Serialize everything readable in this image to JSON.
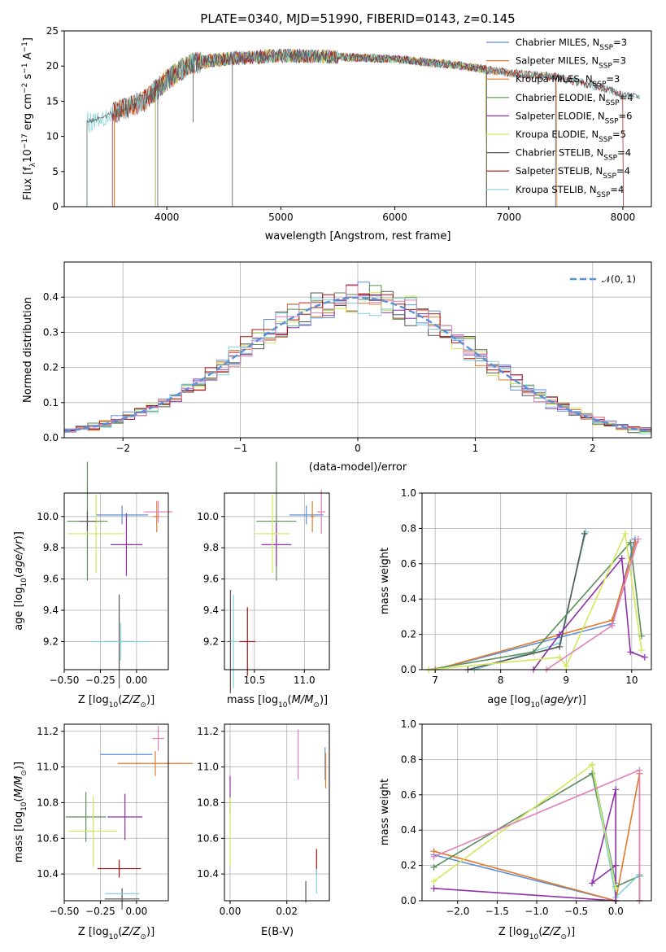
{
  "colors": {
    "Chabrier MILES": "#5b8fd8",
    "Salpeter MILES": "#e07a2a",
    "Kroupa MILES": "#e07a2a",
    "Chabrier ELODIE": "#5a8f5a",
    "Salpeter ELODIE": "#8e30a8",
    "Kroupa ELODIE": "#d4e85a",
    "Chabrier STELIB": "#555555",
    "Salpeter STELIB": "#aa1111",
    "Kroupa STELIB": "#7fd3d8",
    "pink": "#e07fb8",
    "normal": "#5b8fd8"
  },
  "chart_data": [
    {
      "id": "spectrum",
      "type": "line",
      "title": "PLATE=0340, MJD=51990, FIBERID=0143, z=0.145",
      "xlabel": "wavelength [Angstrom, rest frame]",
      "ylabel": "Flux [f",
      "ylabel_full": "Flux [fλ10⁻¹⁷ erg cm⁻² s⁻¹ A⁻¹]",
      "xlim": [
        3100,
        8250
      ],
      "ylim": [
        0,
        25
      ],
      "xticks": [
        "4000",
        "5000",
        "6000",
        "7000",
        "8000"
      ],
      "yticks": [
        "0",
        "5",
        "10",
        "15",
        "20",
        "25"
      ],
      "grid": false,
      "legend_position": "top-right",
      "continuum": [
        [
          3300,
          12
        ],
        [
          3550,
          13.5
        ],
        [
          3800,
          15
        ],
        [
          4000,
          18
        ],
        [
          4200,
          20.3
        ],
        [
          4500,
          21
        ],
        [
          5000,
          21.5
        ],
        [
          5500,
          21.3
        ],
        [
          6000,
          21
        ],
        [
          6300,
          20.5
        ],
        [
          6600,
          20
        ],
        [
          7000,
          19
        ],
        [
          7400,
          18.5
        ],
        [
          7800,
          17
        ],
        [
          8000,
          16
        ],
        [
          8200,
          15.5
        ]
      ],
      "series": [
        {
          "name": "Chabrier MILES, N",
          "sub": "SSP",
          "tail": "=3",
          "color_key": "Chabrier MILES",
          "x_min": 3540,
          "x_max": 6800
        },
        {
          "name": "Salpeter MILES, N",
          "sub": "SSP",
          "tail": "=3",
          "color_key": "Salpeter MILES",
          "x_min": 3540,
          "x_max": 7420
        },
        {
          "name": "Kroupa MILES, N",
          "sub": "SSP",
          "tail": "=3",
          "color_key": "Kroupa MILES",
          "x_min": 3540,
          "x_max": 6800
        },
        {
          "name": "Chabrier ELODIE, N",
          "sub": "SSP",
          "tail": "=4",
          "color_key": "Chabrier ELODIE",
          "x_min": 3900,
          "x_max": 6800
        },
        {
          "name": "Salpeter ELODIE, N",
          "sub": "SSP",
          "tail": "=6",
          "color_key": "Salpeter ELODIE",
          "x_min": 3900,
          "x_max": 6800
        },
        {
          "name": "Kroupa ELODIE, N",
          "sub": "SSP",
          "tail": "=5",
          "color_key": "Kroupa ELODIE",
          "x_min": 3900,
          "x_max": 6800
        },
        {
          "name": "Chabrier STELIB, N",
          "sub": "SSP",
          "tail": "=4",
          "color_key": "Chabrier STELIB",
          "x_min": 3520,
          "x_max": 8000
        },
        {
          "name": "Salpeter STELIB, N",
          "sub": "SSP",
          "tail": "=4",
          "color_key": "Salpeter STELIB",
          "x_min": 3520,
          "x_max": 8000
        },
        {
          "name": "Kroupa STELIB, N",
          "sub": "SSP",
          "tail": "=4",
          "color_key": "Kroupa STELIB",
          "x_min": 3300,
          "x_max": 8000
        }
      ]
    },
    {
      "id": "residuals",
      "type": "histogram",
      "xlabel": "(data-model)/error",
      "ylabel": "Normed distribution",
      "xlim": [
        -2.5,
        2.5
      ],
      "ylim": [
        0,
        0.5
      ],
      "xticks": [
        "−2",
        "−1",
        "0",
        "1",
        "2"
      ],
      "yticks": [
        "0.0",
        "0.1",
        "0.2",
        "0.3",
        "0.4"
      ],
      "grid": true,
      "legend_position": "top-right",
      "legend": "𝒩(0, 1)",
      "bin_width": 0.1,
      "normal": {
        "mean": 0,
        "sigma": 1
      }
    },
    {
      "id": "age-vs-Z",
      "type": "errorbar",
      "xlabel": "Z [log",
      "ylabel": "age  [log",
      "xlim": [
        -0.5,
        0.22
      ],
      "ylim": [
        9.02,
        10.15
      ],
      "xticks": [
        "−0.50",
        "−0.25",
        "0.00"
      ],
      "yticks": [
        "9.2",
        "9.4",
        "9.6",
        "9.8",
        "10.0"
      ],
      "grid": true,
      "points": [
        {
          "x": -0.1,
          "y": 10.01,
          "xerr": 0.18,
          "yerr": 0.06,
          "color_key": "Chabrier MILES"
        },
        {
          "x": 0.14,
          "y": 10.0,
          "xerr": 0.02,
          "yerr": 0.1,
          "color_key": "Salpeter MILES"
        },
        {
          "x": 0.15,
          "y": 10.03,
          "xerr": 0.1,
          "yerr": 0.07,
          "color_key": "pink"
        },
        {
          "x": -0.34,
          "y": 9.97,
          "xerr": 0.14,
          "yerr": 0.38,
          "color_key": "Chabrier ELODIE"
        },
        {
          "x": -0.07,
          "y": 9.82,
          "xerr": 0.11,
          "yerr": 0.2,
          "color_key": "Salpeter ELODIE"
        },
        {
          "x": -0.28,
          "y": 9.89,
          "xerr": 0.2,
          "yerr": 0.25,
          "color_key": "Kroupa ELODIE"
        },
        {
          "x": -0.12,
          "y": 9.2,
          "xerr": 0.1,
          "yerr": 0.3,
          "color_key": "Chabrier STELIB"
        },
        {
          "x": -0.11,
          "y": 9.2,
          "xerr": 0.2,
          "yerr": 0.12,
          "color_key": "Kroupa STELIB"
        },
        {
          "x": -0.34,
          "y": 9.97,
          "xerr": 0.06,
          "yerr": 0.06,
          "color_key": "Chabrier STELIB"
        }
      ]
    },
    {
      "id": "age-vs-mass",
      "type": "errorbar",
      "xlabel": "mass [log",
      "ylabel": "",
      "xlim": [
        10.2,
        11.25
      ],
      "ylim": [
        9.02,
        10.15
      ],
      "xticks": [
        "10.5",
        "11.0"
      ],
      "yticks": [
        "9.2",
        "9.4",
        "9.6",
        "9.8",
        "10.0"
      ],
      "grid": true,
      "points": [
        {
          "x": 11.02,
          "y": 10.01,
          "xerr": 0.17,
          "yerr": 0.06,
          "color_key": "Chabrier MILES"
        },
        {
          "x": 11.08,
          "y": 10.0,
          "xerr": 0.02,
          "yerr": 0.1,
          "color_key": "Salpeter MILES"
        },
        {
          "x": 11.17,
          "y": 10.03,
          "xerr": 0.04,
          "yerr": 0.14,
          "color_key": "pink"
        },
        {
          "x": 10.72,
          "y": 9.97,
          "xerr": 0.2,
          "yerr": 0.38,
          "color_key": "Chabrier ELODIE"
        },
        {
          "x": 10.72,
          "y": 9.82,
          "xerr": 0.15,
          "yerr": 0.14,
          "color_key": "Salpeter ELODIE"
        },
        {
          "x": 10.68,
          "y": 9.89,
          "xerr": 0.18,
          "yerr": 0.25,
          "color_key": "Kroupa ELODIE"
        },
        {
          "x": 10.43,
          "y": 9.2,
          "xerr": 0.08,
          "yerr": 0.22,
          "color_key": "Salpeter STELIB"
        },
        {
          "x": 10.26,
          "y": 9.2,
          "xerr": 0.03,
          "yerr": 0.33,
          "color_key": "Chabrier STELIB"
        },
        {
          "x": 10.29,
          "y": 9.2,
          "xerr": 0.03,
          "yerr": 0.3,
          "color_key": "Kroupa STELIB"
        }
      ]
    },
    {
      "id": "weight-vs-age",
      "type": "line",
      "xlabel": "age  [log",
      "ylabel": "mass weight",
      "xlim": [
        6.8,
        10.3
      ],
      "ylim": [
        0,
        1
      ],
      "xticks": [
        "7",
        "8",
        "9",
        "10"
      ],
      "yticks": [
        "0.0",
        "0.2",
        "0.4",
        "0.6",
        "0.8",
        "1.0"
      ],
      "grid": true,
      "series": [
        {
          "color_key": "Chabrier MILES",
          "x": [
            7.0,
            9.7,
            10.05
          ],
          "y": [
            0.0,
            0.26,
            0.74
          ]
        },
        {
          "color_key": "Salpeter MILES",
          "x": [
            7.0,
            9.7,
            10.06
          ],
          "y": [
            0.0,
            0.28,
            0.72
          ]
        },
        {
          "color_key": "Kroupa STELIB",
          "x": [
            7.6,
            8.9,
            9.3
          ],
          "y": [
            0.0,
            0.15,
            0.78
          ]
        },
        {
          "color_key": "Chabrier STELIB",
          "x": [
            7.5,
            8.9,
            9.28
          ],
          "y": [
            0.0,
            0.13,
            0.77
          ]
        },
        {
          "color_key": "Chabrier ELODIE",
          "x": [
            6.9,
            8.5,
            9.98,
            10.15
          ],
          "y": [
            0.0,
            0.1,
            0.72,
            0.19
          ]
        },
        {
          "color_key": "Salpeter ELODIE",
          "x": [
            8.5,
            8.9,
            9.85,
            9.98,
            10.2
          ],
          "y": [
            0.0,
            0.2,
            0.63,
            0.1,
            0.07
          ]
        },
        {
          "color_key": "Kroupa ELODIE",
          "x": [
            6.9,
            8.9,
            9.0,
            9.9,
            10.15
          ],
          "y": [
            0.0,
            0.07,
            0.02,
            0.77,
            0.11
          ]
        },
        {
          "color_key": "pink",
          "x": [
            8.7,
            9.7,
            10.1
          ],
          "y": [
            0.0,
            0.25,
            0.74
          ]
        }
      ]
    },
    {
      "id": "mass-vs-Z",
      "type": "errorbar",
      "xlabel": "Z [log",
      "ylabel": "mass [log",
      "xlim": [
        -0.5,
        0.22
      ],
      "ylim": [
        10.25,
        11.24
      ],
      "xticks": [
        "−0.50",
        "−0.25",
        "0.00"
      ],
      "yticks": [
        "10.4",
        "10.6",
        "10.8",
        "11.0",
        "11.2"
      ],
      "grid": true,
      "points": [
        {
          "x": -0.07,
          "y": 11.07,
          "xerr": 0.18,
          "yerr": 0.0,
          "color_key": "Chabrier MILES"
        },
        {
          "x": 0.13,
          "y": 11.02,
          "xerr": 0.26,
          "yerr": 0.07,
          "color_key": "Salpeter MILES"
        },
        {
          "x": 0.15,
          "y": 11.16,
          "xerr": 0.04,
          "yerr": 0.07,
          "color_key": "pink"
        },
        {
          "x": -0.35,
          "y": 10.72,
          "xerr": 0.14,
          "yerr": 0.14,
          "color_key": "Chabrier ELODIE"
        },
        {
          "x": -0.08,
          "y": 10.72,
          "xerr": 0.12,
          "yerr": 0.13,
          "color_key": "Salpeter ELODIE"
        },
        {
          "x": -0.3,
          "y": 10.64,
          "xerr": 0.17,
          "yerr": 0.2,
          "color_key": "Kroupa ELODIE"
        },
        {
          "x": -0.12,
          "y": 10.43,
          "xerr": 0.15,
          "yerr": 0.05,
          "color_key": "Salpeter STELIB"
        },
        {
          "x": -0.1,
          "y": 10.26,
          "xerr": 0.12,
          "yerr": 0.06,
          "color_key": "Chabrier STELIB"
        },
        {
          "x": -0.1,
          "y": 10.29,
          "xerr": 0.12,
          "yerr": 0.0,
          "color_key": "Kroupa STELIB"
        }
      ]
    },
    {
      "id": "mass-vs-EBV",
      "type": "errorbar",
      "xlabel": "E(B-V)",
      "ylabel": "",
      "xlim": [
        -0.002,
        0.035
      ],
      "ylim": [
        10.25,
        11.24
      ],
      "xticks": [
        "0.00",
        "0.02"
      ],
      "yticks": [
        "10.4",
        "10.6",
        "10.8",
        "11.0",
        "11.2"
      ],
      "grid": true,
      "points": [
        {
          "x": 0.0,
          "y": 10.84,
          "xerr": 0,
          "yerr": 0.11,
          "color_key": "Salpeter ELODIE"
        },
        {
          "x": 0.0,
          "y": 10.64,
          "xerr": 0,
          "yerr": 0.19,
          "color_key": "Kroupa ELODIE"
        },
        {
          "x": 0.024,
          "y": 11.07,
          "xerr": 0,
          "yerr": 0.14,
          "color_key": "pink"
        },
        {
          "x": 0.0335,
          "y": 11.02,
          "xerr": 0,
          "yerr": 0.09,
          "color_key": "Chabrier MILES"
        },
        {
          "x": 0.0337,
          "y": 10.98,
          "xerr": 0,
          "yerr": 0.1,
          "color_key": "Salpeter MILES"
        },
        {
          "x": 0.0305,
          "y": 10.47,
          "xerr": 0,
          "yerr": 0.07,
          "color_key": "Salpeter STELIB"
        },
        {
          "x": 0.0305,
          "y": 10.36,
          "xerr": 0,
          "yerr": 0.07,
          "color_key": "Kroupa STELIB"
        },
        {
          "x": 0.0267,
          "y": 10.3,
          "xerr": 0,
          "yerr": 0.06,
          "color_key": "Chabrier STELIB"
        }
      ]
    },
    {
      "id": "weight-vs-Z",
      "type": "line",
      "xlabel": "Z [log",
      "ylabel": "mass weight",
      "xlim": [
        -2.45,
        0.45
      ],
      "ylim": [
        0,
        1
      ],
      "xticks": [
        "−2.0",
        "−1.5",
        "−1.0",
        "−0.5",
        "0.0"
      ],
      "yticks": [
        "0.0",
        "0.2",
        "0.4",
        "0.6",
        "0.8",
        "1.0"
      ],
      "grid": true,
      "series": [
        {
          "color_key": "Chabrier MILES",
          "x": [
            -2.3,
            0.0,
            0.0,
            -0.3
          ],
          "y": [
            0.26,
            0.0,
            0.1,
            0.77
          ]
        },
        {
          "color_key": "Salpeter MILES",
          "x": [
            -2.3,
            0.0,
            0.3,
            0.3
          ],
          "y": [
            0.28,
            0.0,
            0.72,
            0.0
          ]
        },
        {
          "color_key": "Chabrier ELODIE",
          "x": [
            -2.3,
            -0.3,
            0.0,
            0.3,
            0.3
          ],
          "y": [
            0.19,
            0.72,
            0.08,
            0.14,
            0.0
          ]
        },
        {
          "color_key": "Kroupa STELIB",
          "x": [
            -0.3,
            0.0,
            0.3
          ],
          "y": [
            0.77,
            0.02,
            0.15
          ]
        },
        {
          "color_key": "Salpeter ELODIE",
          "x": [
            -2.3,
            0.0,
            0.0,
            -0.3,
            0.0
          ],
          "y": [
            0.07,
            0.0,
            0.63,
            0.1,
            0.2
          ]
        },
        {
          "color_key": "Kroupa ELODIE",
          "x": [
            -2.3,
            -0.3,
            0.0
          ],
          "y": [
            0.11,
            0.77,
            0.07
          ]
        },
        {
          "color_key": "pink",
          "x": [
            -2.3,
            0.3,
            0.3
          ],
          "y": [
            0.25,
            0.74,
            0.0
          ]
        }
      ]
    }
  ]
}
